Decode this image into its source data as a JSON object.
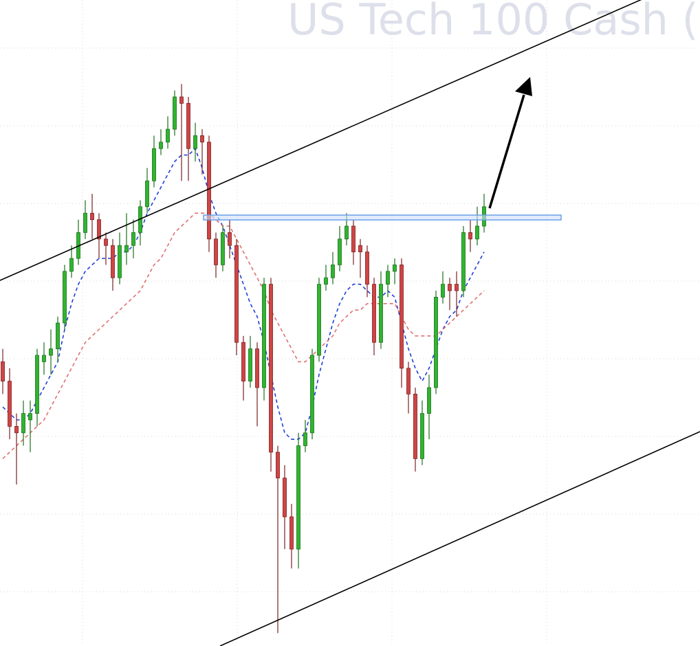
{
  "chart_data": {
    "type": "candlestick",
    "title": "US Tech 100 Cash (",
    "ylim": [
      0,
      100
    ],
    "up_color": "#2fb52f",
    "down_color": "#d04545",
    "open": [
      44,
      41,
      34,
      33,
      35,
      36,
      44,
      45,
      46,
      50,
      58,
      60,
      64,
      67,
      66,
      63,
      62,
      57,
      61,
      62,
      64,
      68,
      72,
      77,
      78,
      80,
      85,
      84,
      77,
      79,
      78,
      63,
      59,
      64,
      62,
      47,
      41,
      46,
      40,
      56,
      30,
      26,
      20,
      15,
      31,
      33,
      45,
      56,
      57,
      59,
      63,
      65,
      62,
      61,
      56,
      47,
      56,
      58,
      59,
      43,
      39,
      29,
      36,
      40,
      54,
      56,
      56,
      55,
      64,
      63,
      65
    ],
    "high": [
      46,
      43,
      36,
      38,
      38,
      46,
      47,
      49,
      51,
      59,
      62,
      66,
      69,
      70,
      67,
      64,
      63,
      64,
      67,
      66,
      69,
      74,
      79,
      80,
      82,
      86,
      87,
      85,
      81,
      80,
      79,
      64,
      65,
      66,
      63,
      48,
      48,
      47,
      57,
      57,
      31,
      28,
      22,
      33,
      35,
      46,
      57,
      59,
      61,
      65,
      67,
      66,
      63,
      62,
      57,
      58,
      59,
      60,
      60,
      44,
      40,
      38,
      42,
      55,
      58,
      57,
      58,
      65,
      66,
      68,
      70
    ],
    "low": [
      39,
      32,
      25,
      31,
      30,
      34,
      42,
      42,
      44,
      49,
      57,
      59,
      63,
      63,
      60,
      59,
      55,
      56,
      59,
      60,
      62,
      67,
      71,
      76,
      77,
      79,
      72,
      72,
      75,
      73,
      61,
      57,
      58,
      60,
      45,
      38,
      40,
      34,
      38,
      27,
      2,
      15,
      12,
      12,
      30,
      32,
      44,
      55,
      56,
      58,
      62,
      59,
      57,
      54,
      45,
      46,
      54,
      56,
      40,
      36,
      27,
      28,
      32,
      39,
      53,
      52,
      51,
      54,
      61,
      62,
      64
    ],
    "close": [
      41,
      34,
      33,
      36,
      36,
      45,
      45,
      46,
      50,
      58,
      60,
      64,
      67,
      66,
      63,
      62,
      57,
      62,
      62,
      64,
      68,
      72,
      77,
      78,
      80,
      85,
      84,
      77,
      79,
      78,
      63,
      59,
      64,
      62,
      47,
      41,
      46,
      40,
      56,
      30,
      26,
      20,
      15,
      31,
      33,
      45,
      56,
      57,
      59,
      63,
      65,
      61,
      61,
      56,
      47,
      56,
      58,
      59,
      43,
      39,
      29,
      36,
      40,
      54,
      56,
      55,
      55,
      64,
      63,
      65,
      68
    ],
    "series": [
      {
        "color": "#1f3fd6",
        "values": [
          37,
          36,
          35,
          35,
          36,
          38,
          40,
          42,
          44,
          49,
          53,
          56,
          58,
          59,
          60,
          60,
          60,
          61,
          61,
          62,
          64,
          67,
          69,
          71,
          73,
          75,
          76,
          76,
          77,
          74,
          70,
          67,
          65,
          62,
          59,
          56,
          53,
          51,
          47,
          42,
          37,
          33,
          32,
          32,
          33,
          37,
          42,
          46,
          50,
          53,
          55,
          56,
          56,
          55,
          54,
          54,
          55,
          54,
          50,
          46,
          43,
          41,
          43,
          46,
          49,
          51,
          52,
          55,
          57,
          59,
          61
        ]
      },
      {
        "color": "#e07070",
        "values": [
          29,
          30,
          31,
          32,
          33,
          34,
          35,
          37,
          39,
          41,
          43,
          45,
          47,
          48,
          49,
          50,
          51,
          52,
          53,
          54,
          55,
          57,
          59,
          60,
          62,
          64,
          65,
          66,
          67,
          67,
          67,
          66,
          65,
          65,
          63,
          61,
          59,
          57,
          55,
          52,
          50,
          48,
          46,
          44,
          44,
          45,
          46,
          47,
          48,
          50,
          51,
          52,
          52,
          53,
          53,
          53,
          53,
          53,
          51,
          49,
          48,
          48,
          48,
          48,
          49,
          50,
          51,
          52,
          53,
          54,
          55
        ]
      }
    ]
  }
}
